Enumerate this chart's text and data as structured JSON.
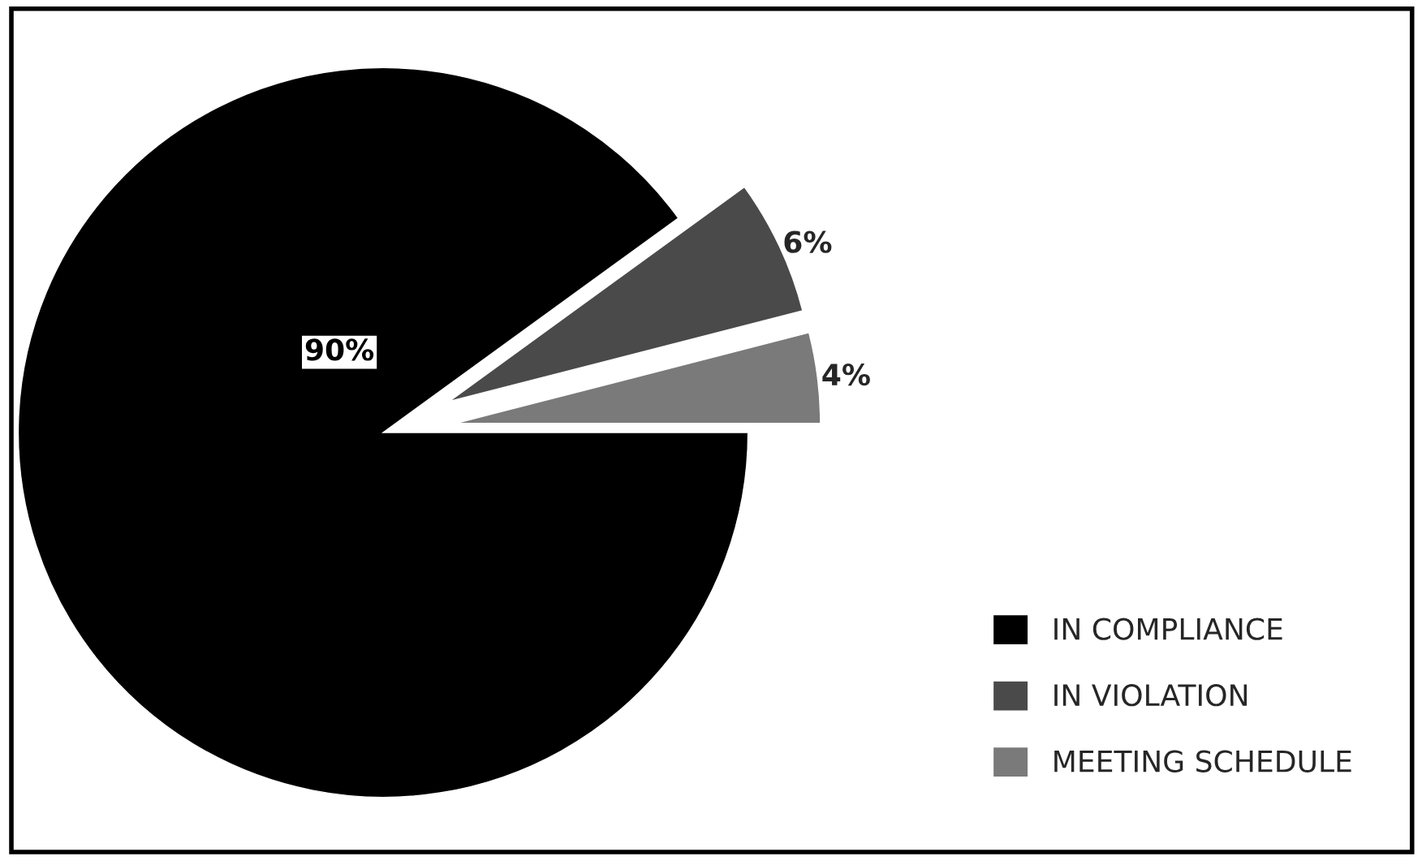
{
  "chart_data": {
    "type": "pie",
    "categories": [
      "IN COMPLIANCE",
      "IN VIOLATION",
      "MEETING SCHEDULE"
    ],
    "values": [
      90,
      6,
      4
    ],
    "value_labels": [
      "90%",
      "6%",
      "4%"
    ],
    "colors": [
      "#000000",
      "#4a4a4a",
      "#7a7a7a"
    ],
    "legend": "bottom right"
  }
}
